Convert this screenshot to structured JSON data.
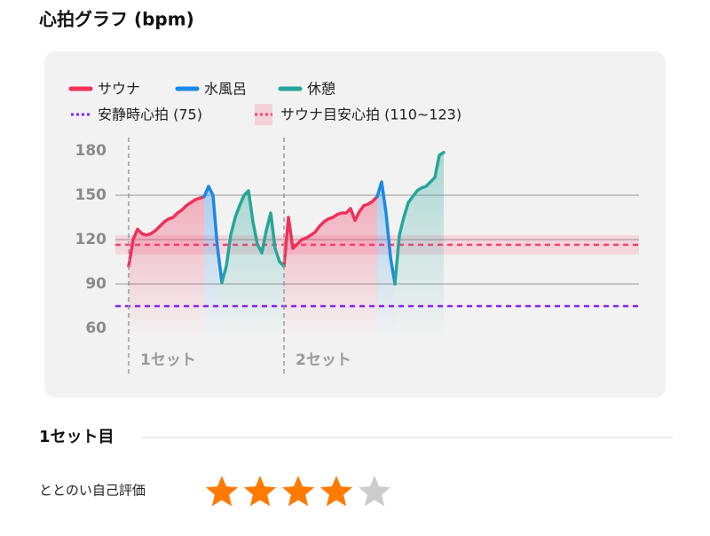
{
  "header": {
    "title": "心拍グラフ (bpm)"
  },
  "chart_data": {
    "type": "line",
    "ylim": [
      54,
      186
    ],
    "yticks": [
      60,
      90,
      120,
      150,
      180
    ],
    "grid": true,
    "series": [
      {
        "name": "サウナ",
        "color": "#f0305a",
        "values": [
          102,
          120,
          127,
          124,
          123,
          124,
          126,
          129,
          132,
          134,
          135,
          138,
          140,
          143,
          145,
          147,
          148,
          149,
          null,
          null,
          null,
          null,
          null,
          null,
          null,
          null,
          null,
          null,
          null,
          null,
          null,
          null,
          null,
          null,
          null,
          102,
          135,
          114,
          117,
          120,
          121,
          123,
          125,
          129,
          132,
          134,
          135,
          137,
          138,
          138,
          141,
          133,
          139,
          143,
          144,
          146,
          149,
          null,
          null,
          null,
          null,
          null,
          null,
          null,
          null,
          null,
          null,
          null,
          null,
          null,
          null,
          null
        ]
      },
      {
        "name": "水風呂",
        "color": "#1e88e5",
        "values": [
          null,
          null,
          null,
          null,
          null,
          null,
          null,
          null,
          null,
          null,
          null,
          null,
          null,
          null,
          null,
          null,
          null,
          149,
          156,
          150,
          115,
          91,
          null,
          null,
          null,
          null,
          null,
          null,
          null,
          null,
          null,
          null,
          null,
          null,
          null,
          null,
          null,
          null,
          null,
          null,
          null,
          null,
          null,
          null,
          null,
          null,
          null,
          null,
          null,
          null,
          null,
          null,
          null,
          null,
          null,
          null,
          149,
          159,
          138,
          108,
          90,
          null,
          null,
          null,
          null,
          null,
          null,
          null,
          null,
          null,
          null,
          null
        ]
      },
      {
        "name": "休憩",
        "color": "#26a69a",
        "values": [
          null,
          null,
          null,
          null,
          null,
          null,
          null,
          null,
          null,
          null,
          null,
          null,
          null,
          null,
          null,
          null,
          null,
          null,
          null,
          null,
          null,
          91,
          102,
          123,
          135,
          143,
          150,
          153,
          132,
          117,
          111,
          126,
          138,
          114,
          105,
          102,
          null,
          null,
          null,
          null,
          null,
          null,
          null,
          null,
          null,
          null,
          null,
          null,
          null,
          null,
          null,
          null,
          null,
          null,
          null,
          null,
          null,
          null,
          null,
          null,
          90,
          123,
          135,
          145,
          149,
          153,
          155,
          156,
          159,
          162,
          177,
          179
        ]
      }
    ],
    "reference_line": {
      "label": "安静時心拍 (75)",
      "value": 75,
      "color": "#8a1cff"
    },
    "reference_band": {
      "label": "サウナ目安心拍 (110~123)",
      "range": [
        110,
        123
      ],
      "color": "#ff3d6e"
    },
    "sets": [
      {
        "label": "1セット",
        "start": 0
      },
      {
        "label": "2セット",
        "start": 35
      }
    ]
  },
  "section": {
    "title": "1セット目",
    "rating": {
      "label": "ととのい自己評価",
      "value": 4,
      "max": 5
    }
  }
}
